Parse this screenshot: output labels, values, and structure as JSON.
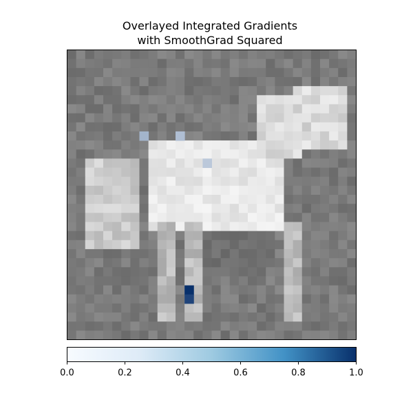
{
  "title_line1": "Overlayed Integrated Gradients",
  "title_line2": "with SmoothGrad Squared",
  "chart_data": {
    "type": "heatmap",
    "title": "Overlayed Integrated Gradients\nwith SmoothGrad Squared",
    "image_grid": "32x32",
    "grid": false,
    "axes_ticks": false,
    "colorbar": {
      "orientation": "horizontal",
      "placement": "bottom",
      "range": [
        0.0,
        1.0
      ],
      "ticks": [
        0.0,
        0.2,
        0.4,
        0.6,
        0.8,
        1.0
      ],
      "tick_labels": [
        "0.0",
        "0.2",
        "0.4",
        "0.6",
        "0.8",
        "1.0"
      ],
      "colormap": "Blues",
      "color_low": "#f7fbff",
      "color_high": "#08306b"
    },
    "base_image_description": "grayscale image of a horse",
    "attribution_hotspots": [
      {
        "col": 8,
        "row": 9,
        "value": 0.35
      },
      {
        "col": 12,
        "row": 9,
        "value": 0.3
      },
      {
        "col": 15,
        "row": 12,
        "value": 0.25
      },
      {
        "col": 13,
        "row": 26,
        "value": 1.0
      },
      {
        "col": 13,
        "row": 27,
        "value": 0.9
      }
    ]
  }
}
